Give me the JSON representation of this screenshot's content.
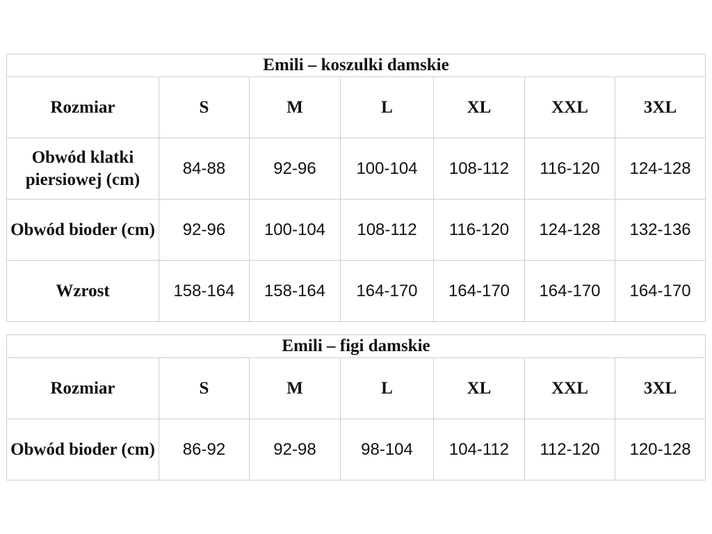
{
  "tables": [
    {
      "title": "Emili – koszulki damskie",
      "header": [
        "Rozmiar",
        "S",
        "M",
        "L",
        "XL",
        "XXL",
        "3XL"
      ],
      "rows": [
        {
          "label": "Obwód klatki piersiowej (cm)",
          "values": [
            "84-88",
            "92-96",
            "100-104",
            "108-112",
            "116-120",
            "124-128"
          ]
        },
        {
          "label": "Obwód bioder (cm)",
          "values": [
            "92-96",
            "100-104",
            "108-112",
            "116-120",
            "124-128",
            "132-136"
          ]
        },
        {
          "label": "Wzrost",
          "values": [
            "158-164",
            "158-164",
            "164-170",
            "164-170",
            "164-170",
            "164-170"
          ]
        }
      ]
    },
    {
      "title": "Emili – figi damskie",
      "header": [
        "Rozmiar",
        "S",
        "M",
        "L",
        "XL",
        "XXL",
        "3XL"
      ],
      "rows": [
        {
          "label": "Obwód bioder (cm)",
          "values": [
            "86-92",
            "92-98",
            "98-104",
            "104-112",
            "112-120",
            "120-128"
          ]
        }
      ]
    }
  ]
}
